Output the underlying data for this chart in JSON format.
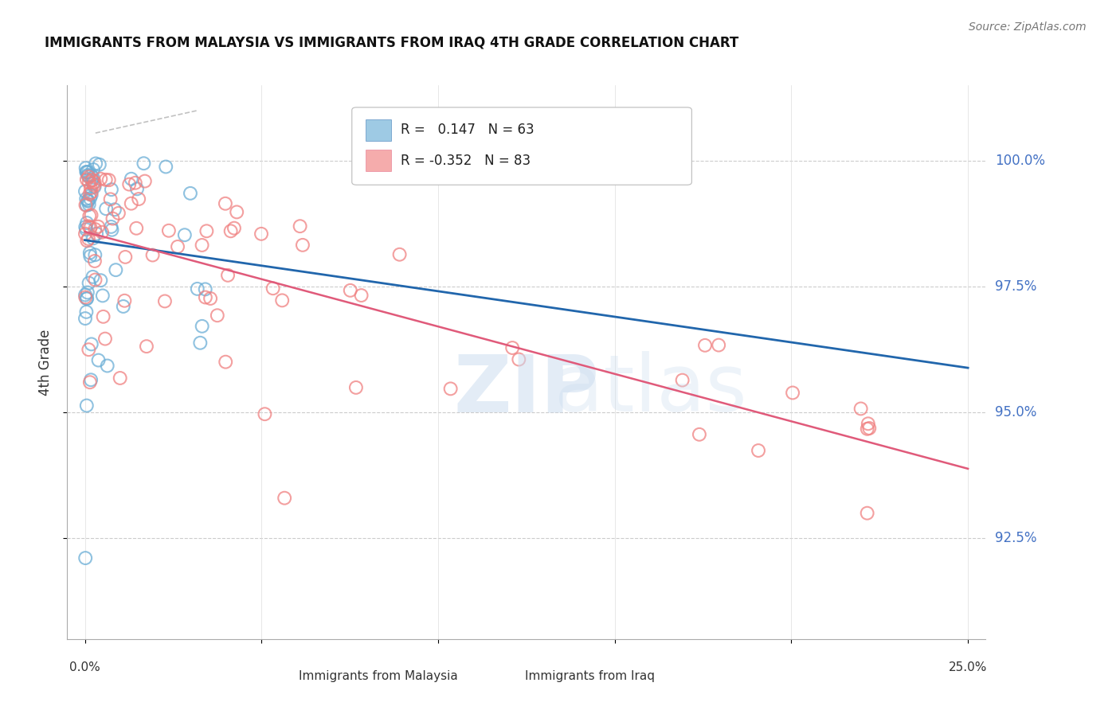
{
  "title": "IMMIGRANTS FROM MALAYSIA VS IMMIGRANTS FROM IRAQ 4TH GRADE CORRELATION CHART",
  "source": "Source: ZipAtlas.com",
  "ylabel": "4th Grade",
  "y_ticks": [
    92.5,
    95.0,
    97.5,
    100.0
  ],
  "y_tick_labels": [
    "92.5%",
    "95.0%",
    "97.5%",
    "100.0%"
  ],
  "x_range": [
    0.0,
    25.0
  ],
  "y_range": [
    91.0,
    101.2
  ],
  "legend_malaysia": "Immigrants from Malaysia",
  "legend_iraq": "Immigrants from Iraq",
  "R_malaysia": 0.147,
  "N_malaysia": 63,
  "R_iraq": -0.352,
  "N_iraq": 83,
  "color_malaysia": "#6baed6",
  "color_iraq": "#f08080",
  "color_malaysia_line": "#2166ac",
  "color_iraq_line": "#e05a7a",
  "color_axis_label": "#4472c4"
}
